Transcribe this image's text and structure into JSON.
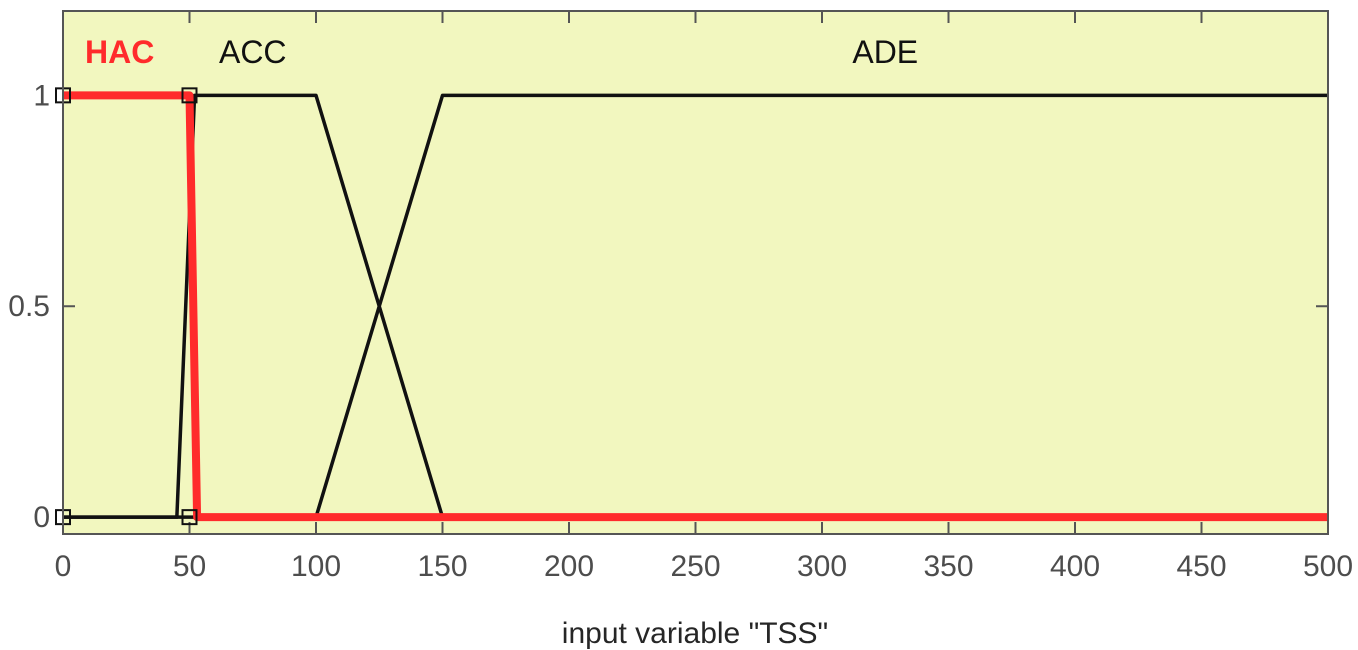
{
  "chart_data": {
    "type": "line",
    "xlabel": "input variable \"TSS\"",
    "ylabel": "",
    "xlim": [
      0,
      500
    ],
    "ylim": [
      -0.04,
      1.2
    ],
    "x_ticks": [
      "0",
      "50",
      "100",
      "150",
      "200",
      "250",
      "300",
      "350",
      "400",
      "450",
      "500"
    ],
    "y_ticks": [
      "0",
      "0.5",
      "1"
    ],
    "background": "#f2f7bf",
    "grid": false,
    "series": [
      {
        "name": "HAC",
        "color": "#ff2b2b",
        "highlighted": true,
        "x": [
          0,
          50,
          53,
          500
        ],
        "y": [
          1,
          1,
          0,
          0
        ],
        "label_at": [
          0,
          1.1
        ]
      },
      {
        "name": "ACC",
        "color": "#111111",
        "highlighted": false,
        "x": [
          0,
          45,
          52,
          100,
          150,
          500
        ],
        "y": [
          0,
          0,
          1,
          1,
          0,
          0
        ],
        "label_at": [
          75,
          1.1
        ]
      },
      {
        "name": "ADE",
        "color": "#111111",
        "highlighted": false,
        "x": [
          0,
          100,
          150,
          500
        ],
        "y": [
          0,
          0,
          1,
          1
        ],
        "label_at": [
          325,
          1.1
        ]
      }
    ],
    "markers": [
      {
        "x": 0,
        "y": 1
      },
      {
        "x": 0,
        "y": 0
      },
      {
        "x": 50,
        "y": 1
      },
      {
        "x": 50,
        "y": 0
      }
    ]
  }
}
